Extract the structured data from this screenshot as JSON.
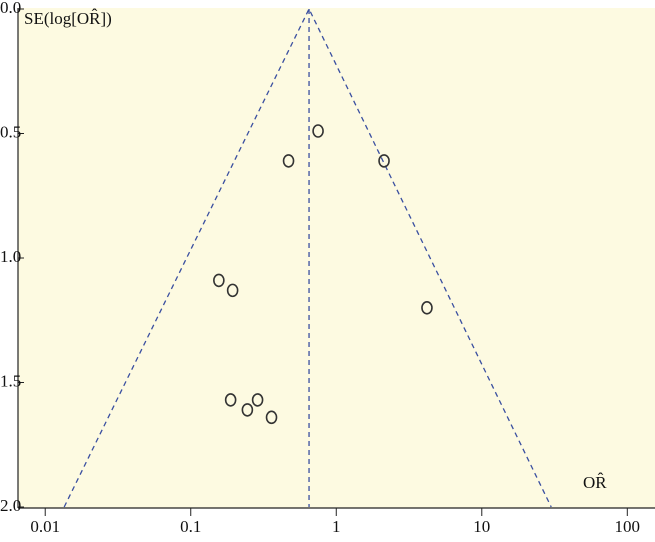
{
  "chart_data": {
    "type": "scatter",
    "y_label": "SE(log[OR̂])",
    "x_label": "OR̂",
    "x": [
      0.75,
      0.47,
      2.13,
      0.156,
      0.194,
      4.2,
      0.188,
      0.288,
      0.245,
      0.359
    ],
    "y": [
      0.49,
      0.61,
      0.61,
      1.09,
      1.13,
      1.2,
      1.57,
      1.57,
      1.61,
      1.64
    ],
    "color": "#333333",
    "xscale": "log",
    "xlim": [
      0.0065,
      155
    ],
    "ylim": [
      0,
      2
    ],
    "y_inverted": true,
    "xticks": [
      0.01,
      0.1,
      1,
      10,
      100
    ],
    "yticks": [
      {
        "value": 0,
        "label": "0.0"
      },
      {
        "value": 0.5,
        "label": "0.5"
      },
      {
        "value": 1,
        "label": "1.0"
      },
      {
        "value": 1.5,
        "label": "1.5"
      },
      {
        "value": 2,
        "label": "2.0"
      }
    ],
    "funnel": {
      "x": [
        0.0135,
        0.65,
        30
      ],
      "y": [
        2,
        0,
        2
      ],
      "color": "#3a4fa0"
    },
    "pooled_or": 0.65,
    "background": "#fdfae1"
  }
}
